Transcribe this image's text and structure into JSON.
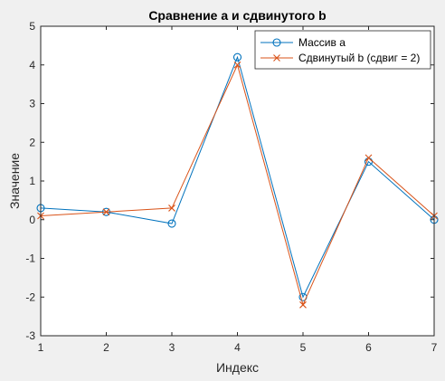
{
  "colors": {
    "background": "#f0f0f0",
    "axes_bg": "#ffffff",
    "axis": "#262626",
    "series_a": "#0072bd",
    "series_b": "#d95319"
  },
  "chart_data": {
    "type": "line",
    "title": "Сравнение a и сдвинутого b",
    "xlabel": "Индекс",
    "ylabel": "Значение",
    "xlim": [
      1,
      7
    ],
    "ylim": [
      -3,
      5
    ],
    "xticks": [
      "1",
      "2",
      "3",
      "4",
      "5",
      "6",
      "7"
    ],
    "yticks": [
      "-3",
      "-2",
      "-1",
      "0",
      "1",
      "2",
      "3",
      "4",
      "5"
    ],
    "grid": false,
    "legend_position": "top-right",
    "x": [
      1,
      2,
      3,
      4,
      5,
      6,
      7
    ],
    "series": [
      {
        "name": "Массив a",
        "marker": "circle",
        "color": "#0072bd",
        "values": [
          0.3,
          0.2,
          -0.1,
          4.2,
          -2.0,
          1.5,
          0.0
        ]
      },
      {
        "name": "Сдвинутый b (сдвиг = 2)",
        "marker": "x",
        "color": "#d95319",
        "values": [
          0.1,
          0.2,
          0.3,
          4.0,
          -2.2,
          1.6,
          0.1
        ]
      }
    ]
  }
}
